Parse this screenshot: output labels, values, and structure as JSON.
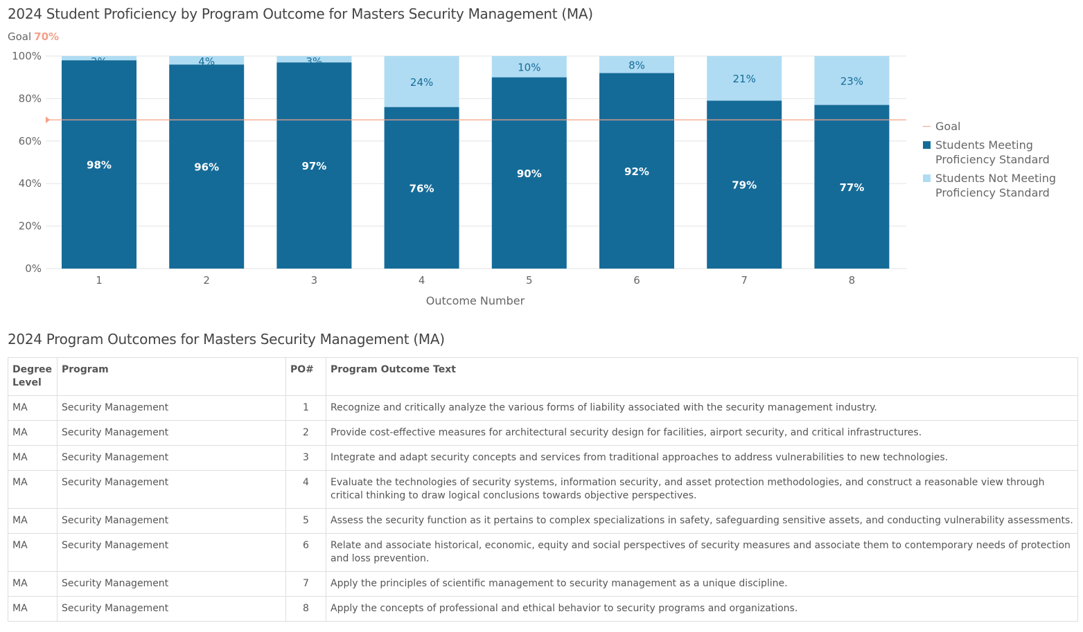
{
  "chart_title": "2024 Student Proficiency by Program Outcome for Masters Security Management (MA)",
  "goal_label": "Goal",
  "goal_value": "70%",
  "colors": {
    "meeting": "#156b98",
    "not_meeting": "#afdcf3",
    "goal": "#f4a08a"
  },
  "chart_data": {
    "type": "bar",
    "stacked": true,
    "title": "2024 Student Proficiency by Program Outcome for Masters Security Management (MA)",
    "xlabel": "Outcome Number",
    "ylabel": "",
    "categories": [
      "1",
      "2",
      "3",
      "4",
      "5",
      "6",
      "7",
      "8"
    ],
    "yticks": [
      "0%",
      "20%",
      "40%",
      "60%",
      "80%",
      "100%"
    ],
    "ylim": [
      0,
      100
    ],
    "grid": true,
    "legend": "right",
    "goal": 70,
    "series": [
      {
        "name": "Students Meeting Proficiency Standard",
        "values": [
          98,
          96,
          97,
          76,
          90,
          92,
          79,
          77
        ],
        "labels": [
          "98%",
          "96%",
          "97%",
          "76%",
          "90%",
          "92%",
          "79%",
          "77%"
        ]
      },
      {
        "name": "Students Not Meeting Proficiency Standard",
        "values": [
          2,
          4,
          3,
          24,
          10,
          8,
          21,
          23
        ],
        "labels": [
          "2%",
          "4%",
          "3%",
          "24%",
          "10%",
          "8%",
          "21%",
          "23%"
        ]
      }
    ],
    "legend_entries": [
      "Goal",
      "Students Meeting Proficiency Standard",
      "Students Not Meeting Proficiency Standard"
    ]
  },
  "table_title": "2024 Program Outcomes for Masters Security Management (MA)",
  "table": {
    "headers": [
      "Degree Level",
      "Program",
      "PO#",
      "Program Outcome Text"
    ],
    "rows": [
      [
        "MA",
        "Security Management",
        "1",
        "Recognize and critically analyze the various forms of liability associated with the security management industry."
      ],
      [
        "MA",
        "Security Management",
        "2",
        "Provide cost-effective measures for architectural security design for facilities, airport security, and critical infrastructures."
      ],
      [
        "MA",
        "Security Management",
        "3",
        "Integrate and adapt security concepts and services from traditional approaches to address vulnerabilities to new technologies."
      ],
      [
        "MA",
        "Security Management",
        "4",
        "Evaluate the technologies of security systems, information security, and asset protection methodologies, and construct a reasonable view through critical thinking to draw logical conclusions towards objective perspectives."
      ],
      [
        "MA",
        "Security Management",
        "5",
        "Assess the security function as it pertains to complex specializations in safety, safeguarding sensitive assets, and conducting vulnerability assessments."
      ],
      [
        "MA",
        "Security Management",
        "6",
        "Relate and associate historical, economic, equity and social perspectives of security measures and associate them to contemporary needs of protection and loss prevention."
      ],
      [
        "MA",
        "Security Management",
        "7",
        "Apply the principles of scientific management to security management as a unique discipline."
      ],
      [
        "MA",
        "Security Management",
        "8",
        "Apply the concepts of professional and ethical behavior to security programs and organizations."
      ]
    ]
  }
}
